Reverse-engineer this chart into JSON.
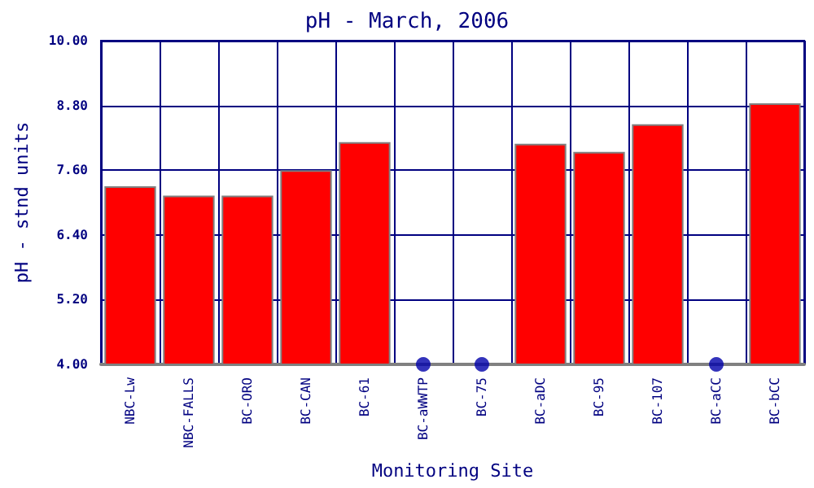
{
  "chart_data": {
    "type": "bar",
    "title": "pH - March, 2006",
    "xlabel": "Monitoring Site",
    "ylabel": "pH - stnd units",
    "categories": [
      "NBC-Lw",
      "NBC-FALLS",
      "BC-ORO",
      "BC-CAN",
      "BC-61",
      "BC-aWWTP",
      "BC-75",
      "BC-aDC",
      "BC-95",
      "BC-107",
      "BC-aCC",
      "BC-bCC"
    ],
    "series": [
      {
        "color": "#ff0000",
        "values": [
          7.3,
          7.13,
          7.13,
          7.6,
          8.12,
          null,
          null,
          8.09,
          7.94,
          8.45,
          null,
          8.84
        ]
      },
      {
        "type": "scatter",
        "color": "#0000aa",
        "x": [
          "BC-aWWTP",
          "BC-75",
          "BC-aCC"
        ],
        "values": [
          4,
          4,
          4
        ]
      }
    ],
    "ylim": [
      4,
      10
    ],
    "yticks": [
      {
        "value": 4,
        "label": "4.00"
      },
      {
        "value": 5.2,
        "label": "5.20"
      },
      {
        "value": 6.4,
        "label": "6.40"
      },
      {
        "value": 7.6,
        "label": "7.60"
      },
      {
        "value": 8.8,
        "label": "8.80"
      },
      {
        "value": 10,
        "label": "10.00"
      }
    ],
    "grid": true,
    "marker": "circle"
  }
}
